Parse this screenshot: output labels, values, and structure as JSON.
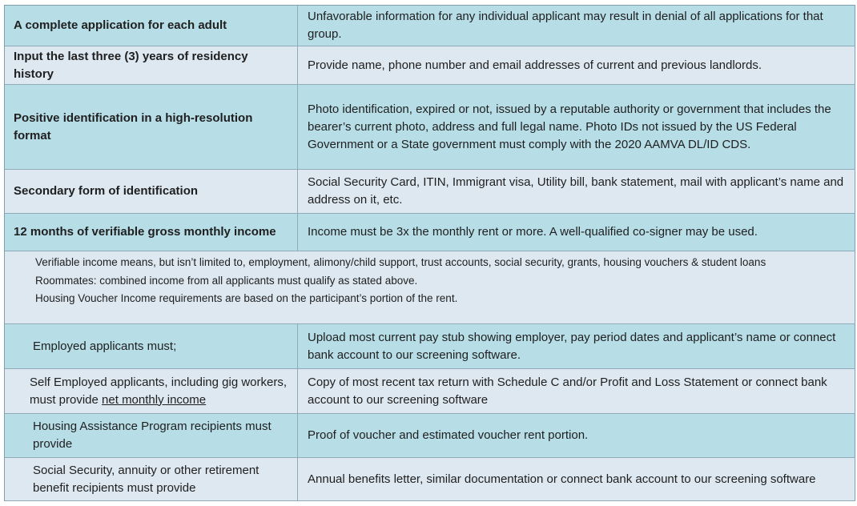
{
  "rows": [
    {
      "left": "A complete application for each adult",
      "right": "Unfavorable information for any individual applicant may result in denial of all applications for that group."
    },
    {
      "left": "Input the last three (3) years of residency history",
      "right": "Provide name, phone number and email addresses of current and previous landlords."
    },
    {
      "left": "Positive identification in a high-resolution format",
      "right": "Photo identification, expired or not, issued by a reputable authority or government that includes the bearer’s current photo, address and full legal name. Photo IDs not issued by the US Federal Government or a State government must comply with the 2020 AAMVA DL/ID CDS."
    },
    {
      "left": "Secondary form of identification",
      "right": "Social Security Card, ITIN, Immigrant visa, Utility bill, bank statement, mail with applicant’s name and address on it, etc."
    },
    {
      "left": "12 months of verifiable gross monthly income",
      "right": "Income must be 3x the monthly rent or more. A well-qualified co-signer may be used."
    }
  ],
  "notes": [
    "Verifiable income means, but isn’t limited to, employment, alimony/child support, trust accounts, social security, grants, housing vouchers & student loans",
    "Roommates: combined income from all applicants must qualify as stated above.",
    "Housing Voucher Income requirements are based on the participant’s portion of the rent."
  ],
  "sub_rows": [
    {
      "left": "Employed applicants must;",
      "right": "Upload most current pay stub showing employer, pay period dates and applicant’s name or connect bank account to our screening software."
    },
    {
      "left_prefix": "Self Employed applicants, including gig workers, must provide ",
      "left_underline": "net monthly income",
      "right": "Copy of most recent tax return with Schedule C and/or Profit and Loss Statement or connect bank account to our screening software"
    },
    {
      "left": "Housing Assistance Program recipients must provide",
      "right": "Proof of voucher and estimated voucher rent portion."
    },
    {
      "left": "Social Security, annuity or other retirement benefit recipients must provide",
      "right": "Annual benefits letter, similar documentation or connect bank account to our screening software"
    }
  ]
}
